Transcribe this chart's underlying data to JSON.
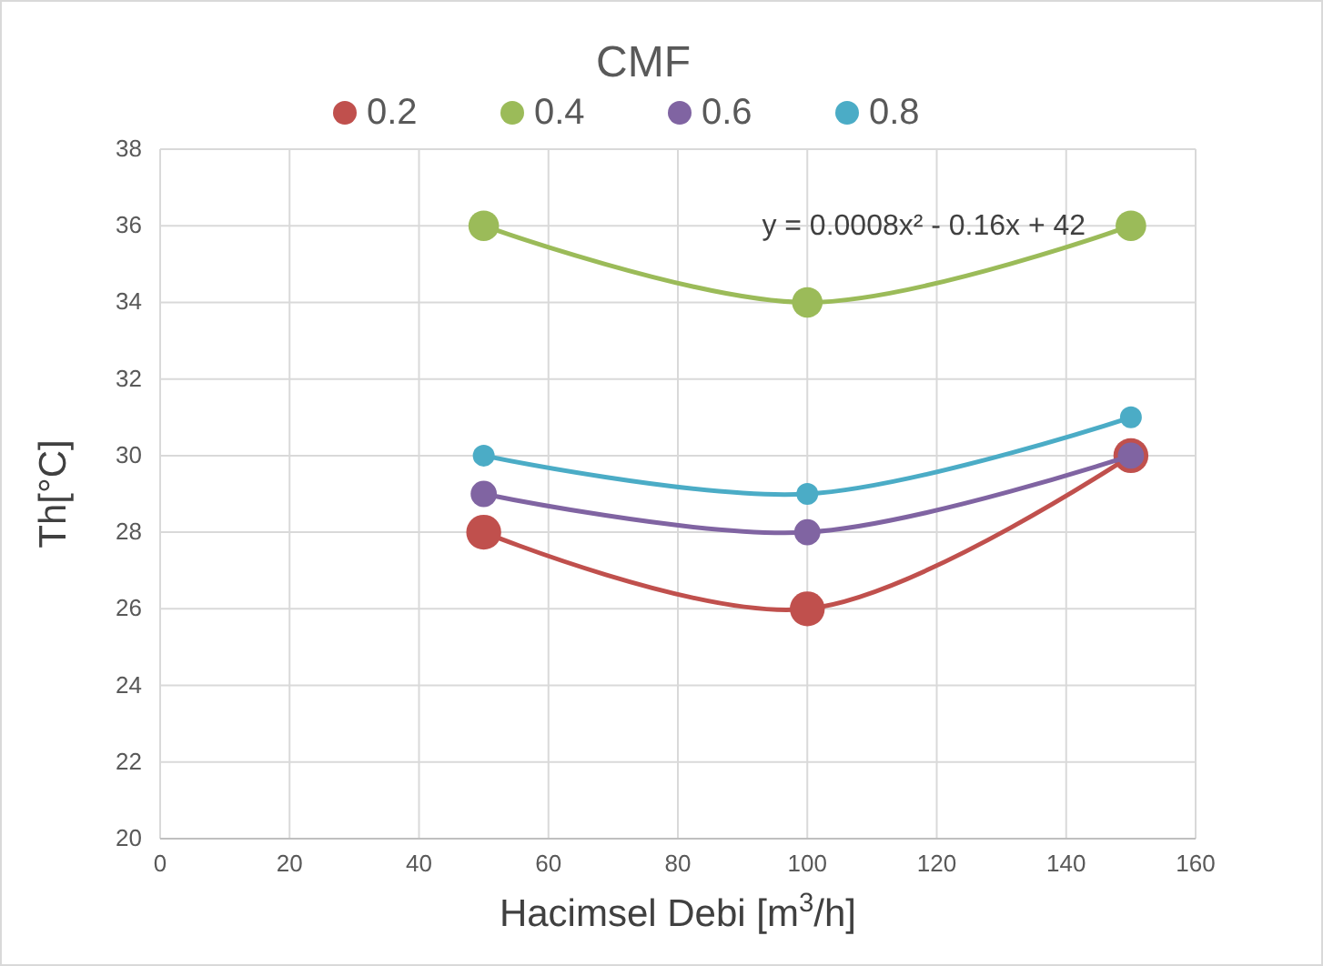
{
  "chart_data": {
    "type": "line",
    "title": "CMF",
    "xlabel": "Hacimsel Debi [m$^{3}$/h]",
    "ylabel": "Th[°C]",
    "x": [
      50,
      100,
      150
    ],
    "series": [
      {
        "name": "0.2",
        "color": "#c0504d",
        "values": [
          28,
          26,
          30
        ]
      },
      {
        "name": "0.4",
        "color": "#9bbb59",
        "values": [
          36,
          34,
          36
        ]
      },
      {
        "name": "0.6",
        "color": "#8064a2",
        "values": [
          29,
          28,
          30
        ]
      },
      {
        "name": "0.8",
        "color": "#4bacc6",
        "values": [
          30,
          29,
          31
        ]
      }
    ],
    "xlim": [
      0,
      160
    ],
    "xticks": [
      0,
      20,
      40,
      60,
      80,
      100,
      120,
      140,
      160
    ],
    "ylim": [
      20,
      38
    ],
    "yticks": [
      20,
      22,
      24,
      26,
      28,
      30,
      32,
      34,
      36,
      38
    ],
    "grid": true,
    "legend": "top",
    "marker": "circle",
    "annotations": [
      "y = 0.0008x² - 0.16x + 42"
    ]
  }
}
